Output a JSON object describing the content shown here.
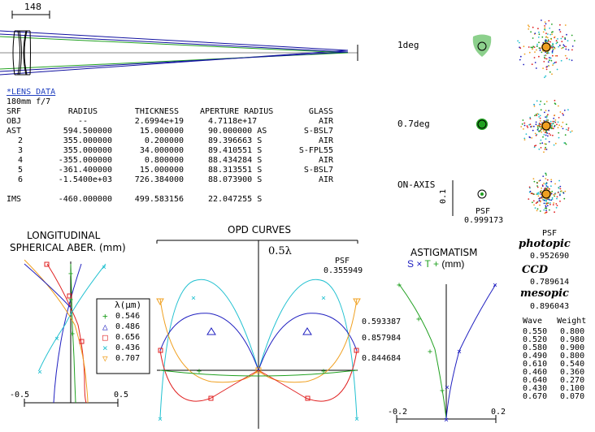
{
  "scale_bar": {
    "label": "148"
  },
  "lens_data": {
    "heading": "*LENS DATA",
    "subtitle": "180mm f/7",
    "columns": [
      "SRF",
      "RADIUS",
      "THICKNESS",
      "APERTURE RADIUS",
      "GLASS"
    ],
    "rows": [
      [
        "OBJ",
        "--",
        "2.6994e+19",
        "4.7118e+17",
        "AIR"
      ],
      [
        "AST",
        "594.500000",
        "15.000000",
        "90.000000 AS",
        "S-BSL7"
      ],
      [
        "2",
        "355.000000",
        "0.200000",
        "89.396663 S",
        "AIR"
      ],
      [
        "3",
        "355.000000",
        "34.000000",
        "89.410551 S",
        "S-FPL55"
      ],
      [
        "4",
        "-355.000000",
        "0.800000",
        "88.434284 S",
        "AIR"
      ],
      [
        "5",
        "-361.400000",
        "15.000000",
        "88.313551 S",
        "S-BSL7"
      ],
      [
        "6",
        "-1.5400e+03",
        "726.384000",
        "88.073900 S",
        "AIR"
      ],
      [
        "IMS",
        "-460.000000",
        "499.583156",
        "22.047255 S",
        ""
      ]
    ]
  },
  "spots": {
    "labels": [
      "1deg",
      "0.7deg",
      "ON-AXIS"
    ],
    "scale_label": "0.1",
    "psf_label": "PSF",
    "psf_value": "0.999173"
  },
  "psf_panel": {
    "psf_label": "PSF",
    "photopic_label": "photopic",
    "photopic_value": "0.952690",
    "ccd_label": "CCD",
    "ccd_value": "0.789614",
    "mesopic_label": "mesopic",
    "mesopic_value": "0.896043",
    "weights_header": [
      "Wave",
      "Weight"
    ],
    "weights": [
      [
        "0.550",
        "0.800"
      ],
      [
        "0.520",
        "0.980"
      ],
      [
        "0.580",
        "0.900"
      ],
      [
        "0.490",
        "0.800"
      ],
      [
        "0.610",
        "0.540"
      ],
      [
        "0.460",
        "0.360"
      ],
      [
        "0.640",
        "0.270"
      ],
      [
        "0.430",
        "0.100"
      ],
      [
        "0.670",
        "0.070"
      ]
    ]
  },
  "longitudinal": {
    "title_line1": "LONGITUDINAL",
    "title_line2": "SPHERICAL ABER. (mm)",
    "legend_title": "λ(µm)",
    "legend": [
      {
        "label": "0.546",
        "color": "#20a020",
        "marker": "+"
      },
      {
        "label": "0.486",
        "color": "#2020c0",
        "marker": "triangle"
      },
      {
        "label": "0.656",
        "color": "#e02020",
        "marker": "square"
      },
      {
        "label": "0.436",
        "color": "#20c0d0",
        "marker": "x"
      },
      {
        "label": "0.707",
        "color": "#f0a020",
        "marker": "triangle-down"
      }
    ],
    "xmin_label": "-0.5",
    "xmax_label": "0.5"
  },
  "opd": {
    "title": "OPD CURVES",
    "scale_label": "0.5λ",
    "psf_label": "PSF",
    "values": [
      "0.355949",
      "0.593387",
      "0.857984",
      "0.844684"
    ]
  },
  "astig": {
    "title": "ASTIGMATISM",
    "legend_s": "S",
    "legend_t": "T",
    "legend_mm": "(mm)",
    "xmin_label": "-0.2",
    "xmax_label": "0.2"
  }
}
